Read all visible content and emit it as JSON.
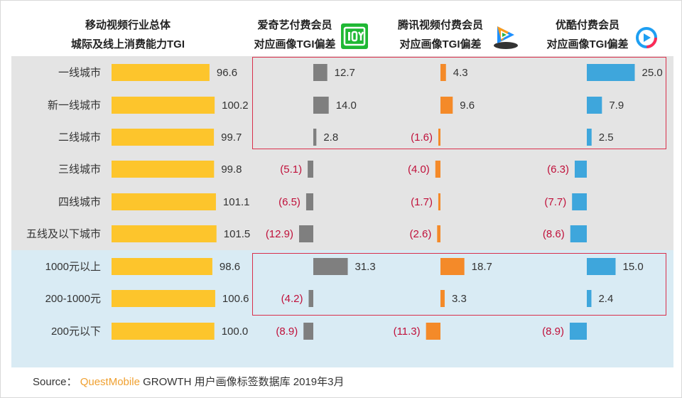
{
  "headers": {
    "col1": [
      "移动视频行业总体",
      "城际及线上消费能力TGI"
    ],
    "col2": [
      "爱奇艺付费会员",
      "对应画像TGI偏差"
    ],
    "col3": [
      "腾讯视频付费会员",
      "对应画像TGI偏差"
    ],
    "col4": [
      "优酷付费会员",
      "对应画像TGI偏差"
    ]
  },
  "colors": {
    "overall": "#fdc52c",
    "iqiyi": "#7f7f7f",
    "tencent": "#f48a29",
    "youku": "#3ea6dc",
    "negative_label": "#c0103a",
    "highlight_box": "#d9304b",
    "bg_city": "#e4e4e4",
    "bg_spend": "#d9ebf4"
  },
  "icons": {
    "iqiyi": "iqiyi-logo-icon",
    "tencent": "tencent-video-logo-icon",
    "youku": "youku-logo-icon"
  },
  "chart_data": {
    "type": "bar",
    "categories": [
      "一线城市",
      "新一线城市",
      "二线城市",
      "三线城市",
      "四线城市",
      "五线及以下城市",
      "1000元以上",
      "200-1000元",
      "200元以下"
    ],
    "groups": [
      {
        "label": "city_tier",
        "categories": [
          "一线城市",
          "新一线城市",
          "二线城市",
          "三线城市",
          "四线城市",
          "五线及以下城市"
        ]
      },
      {
        "label": "online_spend",
        "categories": [
          "1000元以上",
          "200-1000元",
          "200元以下"
        ]
      }
    ],
    "series": [
      {
        "key": "overall",
        "values": [
          96.6,
          100.2,
          99.7,
          99.8,
          101.1,
          101.5,
          98.6,
          100.6,
          100.0
        ]
      },
      {
        "key": "iqiyi",
        "values": [
          12.7,
          14.0,
          2.8,
          -5.1,
          -6.5,
          -12.9,
          31.3,
          -4.2,
          -8.9
        ]
      },
      {
        "key": "tencent",
        "values": [
          4.3,
          9.6,
          -1.6,
          -4.0,
          -1.7,
          -2.6,
          18.7,
          3.3,
          -11.3
        ]
      },
      {
        "key": "youku",
        "values": [
          25.0,
          7.9,
          2.5,
          -6.3,
          -7.7,
          -8.6,
          15.0,
          2.4,
          -8.9
        ]
      }
    ],
    "labels": {
      "overall": [
        "96.6",
        "100.2",
        "99.7",
        "99.8",
        "101.1",
        "101.5",
        "98.6",
        "100.6",
        "100.0"
      ],
      "iqiyi": [
        "12.7",
        "14.0",
        "2.8",
        "(5.1)",
        "(6.5)",
        "(12.9)",
        "31.3",
        "(4.2)",
        "(8.9)"
      ],
      "tencent": [
        "4.3",
        "9.6",
        "(1.6)",
        "(4.0)",
        "(1.7)",
        "(2.6)",
        "18.7",
        "3.3",
        "(11.3)"
      ],
      "youku": [
        "25.0",
        "7.9",
        "2.5",
        "(6.3)",
        "(7.7)",
        "(8.6)",
        "15.0",
        "2.4",
        "(8.9)"
      ]
    },
    "highlighted_rows": [
      [
        0,
        2
      ],
      [
        6,
        7
      ]
    ],
    "grid": false,
    "legend": "none"
  },
  "source": {
    "prefix": "Source：",
    "brand": "QuestMobile",
    "text": " GROWTH 用户画像标签数据库 2019年3月"
  }
}
